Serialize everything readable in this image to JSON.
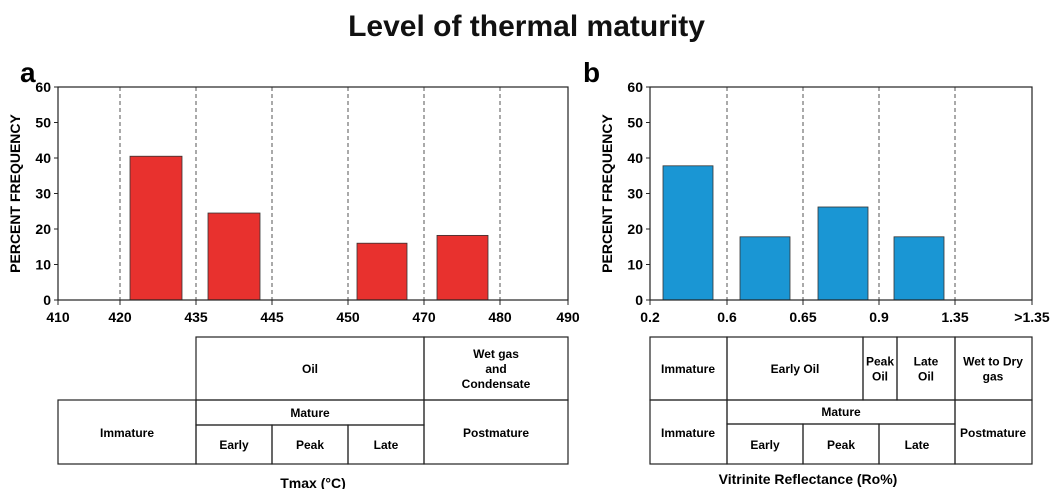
{
  "title": "Level of thermal maturity",
  "chart_data": [
    {
      "panel": "a",
      "type": "bar",
      "ylabel": "PERCENT FREQUENCY",
      "xlabel": "Tmax (°C)",
      "ylim": [
        0,
        60
      ],
      "yticks": [
        "0",
        "10",
        "20",
        "30",
        "40",
        "50",
        "60"
      ],
      "xtick_labels": [
        "410",
        "420",
        "435",
        "445",
        "450",
        "470",
        "480",
        "490"
      ],
      "bars": [
        {
          "from": "420",
          "to": "435",
          "value": 40.5,
          "color": "#e8312e"
        },
        {
          "from": "435",
          "to": "445",
          "value": 24.5,
          "color": "#e8312e"
        },
        {
          "from": "450",
          "to": "470",
          "value": 16,
          "color": "#e8312e"
        },
        {
          "from": "470",
          "to": "480",
          "value": 18.2,
          "color": "#e8312e"
        }
      ],
      "zones": [
        {
          "name": "Immature",
          "group": "",
          "sub": ""
        },
        {
          "name": "Mature",
          "group": "Oil",
          "sub": "Early"
        },
        {
          "name": "Mature",
          "group": "Oil",
          "sub": "Peak"
        },
        {
          "name": "Mature",
          "group": "Oil",
          "sub": "Late"
        },
        {
          "name": "Postmature",
          "group": "Wet gas and Condensate",
          "sub": ""
        }
      ],
      "table": {
        "oil": "Oil",
        "wet_gas": "Wet gas and Condensate",
        "immature": "Immature",
        "mature": "Mature",
        "early": "Early",
        "peak": "Peak",
        "late": "Late",
        "postmature": "Postmature"
      }
    },
    {
      "panel": "b",
      "type": "bar",
      "ylabel": "PERCENT FREQUENCY",
      "xlabel": "Vitrinite Reflectance (Ro%)",
      "ylim": [
        0,
        60
      ],
      "yticks": [
        "0",
        "10",
        "20",
        "30",
        "40",
        "50",
        "60"
      ],
      "xtick_labels": [
        "0.2",
        "0.6",
        "0.65",
        "0.9",
        "1.35",
        ">1.35"
      ],
      "bars": [
        {
          "from": "0.2",
          "to": "0.6",
          "value": 37.8,
          "color": "#1a96d4"
        },
        {
          "from": "0.6",
          "to": "0.65",
          "value": 17.8,
          "color": "#1a96d4"
        },
        {
          "from": "0.65",
          "to": "0.9",
          "value": 26.2,
          "color": "#1a96d4"
        },
        {
          "from": "0.9",
          "to": "1.35",
          "value": 17.8,
          "color": "#1a96d4"
        }
      ],
      "table": {
        "immature_top": "Immature",
        "early_oil": "Early Oil",
        "peak_oil": "Peak Oil",
        "late_oil": "Late Oil",
        "wet_dry": "Wet to Dry gas",
        "immature": "Immature",
        "mature": "Mature",
        "early": "Early",
        "peak": "Peak",
        "late": "Late",
        "postmature": "Postmature"
      }
    }
  ]
}
